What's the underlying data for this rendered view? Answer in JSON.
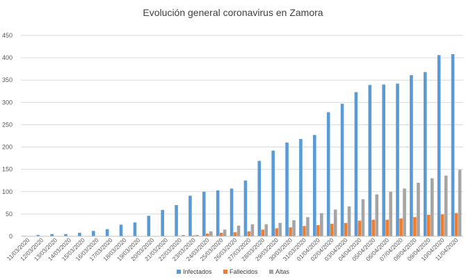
{
  "chart_data": {
    "type": "bar",
    "title": "Evolución general coronavirus en Zamora",
    "xlabel": "",
    "ylabel": "",
    "ylim": [
      0,
      450
    ],
    "yticks": [
      0,
      50,
      100,
      150,
      200,
      250,
      300,
      350,
      400,
      450
    ],
    "grid": true,
    "legend_position": "bottom",
    "categories": [
      "11/03/2020",
      "12/03/2020",
      "13/03/2020",
      "14/03/2020",
      "15/03/2020",
      "16/03/2020",
      "17/03/2020",
      "18/03/2020",
      "19/03/2020",
      "20/03/2020",
      "21/03/2020",
      "22/03/2020",
      "23/03/2020",
      "24/03/2020",
      "25/03/2020",
      "26/03/2020",
      "27/03/2020",
      "28/03/2020",
      "29/03/2020",
      "30/03/2020",
      "31/03/2020",
      "01/04/2020",
      "02/04/2020",
      "03/04/2020",
      "04/04/2020",
      "05/04/2020",
      "06/04/2020",
      "07/04/2020",
      "08/04/2020",
      "09/04/2020",
      "10/04/2020",
      "11/04/2020"
    ],
    "series": [
      {
        "name": "Infectados",
        "color": "#5b9bd5",
        "values": [
          1,
          3,
          5,
          5,
          8,
          12,
          16,
          26,
          31,
          46,
          59,
          70,
          91,
          100,
          103,
          107,
          125,
          169,
          192,
          210,
          218,
          227,
          278,
          297,
          323,
          339,
          340,
          342,
          361,
          368,
          406,
          408
        ]
      },
      {
        "name": "Fallecidos",
        "color": "#ed7d31",
        "values": [
          0,
          0,
          0,
          0,
          0,
          0,
          0,
          0,
          0,
          0,
          1,
          1,
          2,
          6,
          8,
          9,
          11,
          15,
          18,
          20,
          23,
          25,
          28,
          30,
          35,
          37,
          37,
          40,
          43,
          48,
          49,
          52
        ]
      },
      {
        "name": "Altas",
        "color": "#a5a5a5",
        "values": [
          0,
          0,
          0,
          0,
          0,
          0,
          0,
          0,
          0,
          0,
          0,
          3,
          3,
          11,
          15,
          24,
          27,
          27,
          30,
          36,
          43,
          52,
          60,
          67,
          83,
          94,
          100,
          107,
          120,
          130,
          136,
          149
        ]
      }
    ]
  }
}
